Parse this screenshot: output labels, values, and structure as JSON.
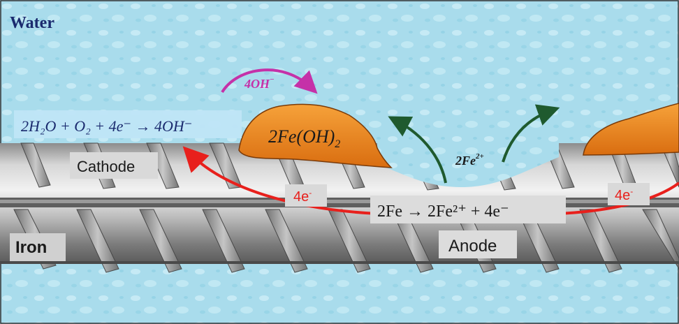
{
  "labels": {
    "water": "Water",
    "iron": "Iron",
    "cathode": "Cathode",
    "anode": "Anode",
    "hydroxide": "4OH",
    "hydroxide_charge": "−",
    "ferrous_ion": "2Fe",
    "ferrous_charge": "2+",
    "ferrous_hydroxide": "2Fe(OH)",
    "ferrous_hydroxide_sub": "2",
    "electrons_left": "4e",
    "electrons_right": "4e",
    "electron_charge": "-"
  },
  "equations": {
    "cathode": "2H₂O + O₂ + 4e⁻ → 4OH⁻",
    "anode": "2Fe → 2Fe²⁺ + 4e⁻"
  },
  "colors": {
    "water": "#a9dcec",
    "rust": "#e8821c",
    "arrow_red": "#e8201c",
    "arrow_green": "#1f5a2e",
    "arrow_magenta": "#c531a8",
    "label_navy": "#1a2a6e"
  }
}
